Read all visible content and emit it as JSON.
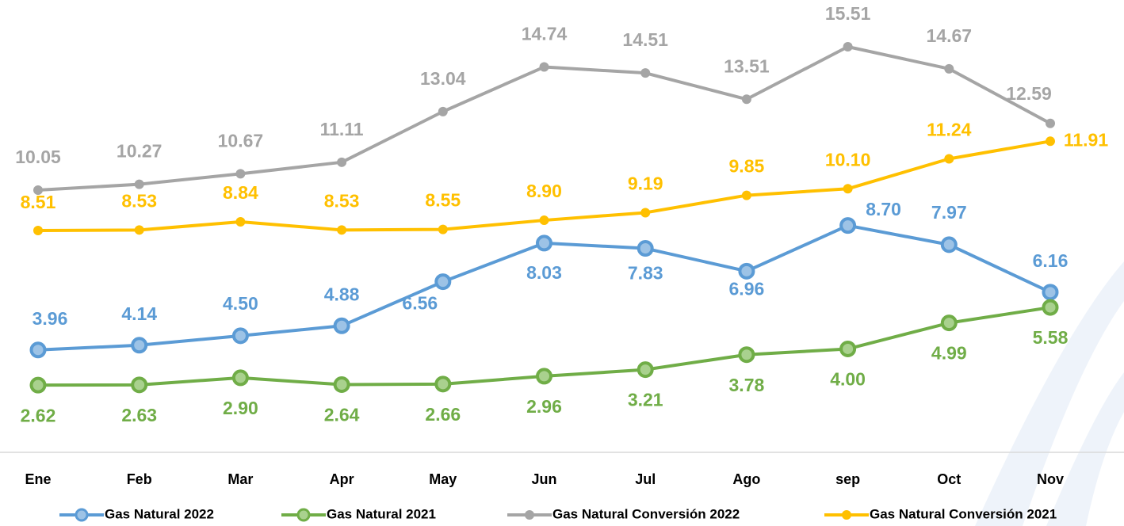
{
  "chart_data": {
    "type": "line",
    "categories": [
      "Ene",
      "Feb",
      "Mar",
      "Apr",
      "May",
      "Jun",
      "Jul",
      "Ago",
      "sep",
      "Oct",
      "Nov"
    ],
    "ylim": [
      0,
      17.2
    ],
    "series": [
      {
        "name": "Gas Natural 2022",
        "color": "#5b9bd5",
        "values": [
          3.96,
          4.14,
          4.5,
          4.88,
          6.56,
          8.03,
          7.83,
          6.96,
          8.7,
          7.97,
          6.16
        ],
        "value_labels": [
          "3.96",
          "4.14",
          "4.50",
          "4.88",
          "6.56",
          "8.03",
          "7.83",
          "6.96",
          "8.70",
          "7.97",
          "6.16"
        ]
      },
      {
        "name": "Gas Natural 2021",
        "color": "#70ad47",
        "values": [
          2.62,
          2.63,
          2.9,
          2.64,
          2.66,
          2.96,
          3.21,
          3.78,
          4.0,
          4.99,
          5.58
        ],
        "value_labels": [
          "2.62",
          "2.63",
          "2.90",
          "2.64",
          "2.66",
          "2.96",
          "3.21",
          "3.78",
          "4.00",
          "4.99",
          "5.58"
        ]
      },
      {
        "name": "Gas Natural Conversión 2022",
        "color": "#a5a5a5",
        "values": [
          10.05,
          10.27,
          10.67,
          11.11,
          13.04,
          14.74,
          14.51,
          13.51,
          15.51,
          14.67,
          12.59
        ],
        "value_labels": [
          "10.05",
          "10.27",
          "10.67",
          "11.11",
          "13.04",
          "14.74",
          "14.51",
          "13.51",
          "15.51",
          "14.67",
          "12.59"
        ]
      },
      {
        "name": "Gas Natural Conversión 2021",
        "color": "#ffc000",
        "values": [
          8.51,
          8.53,
          8.84,
          8.53,
          8.55,
          8.9,
          9.19,
          9.85,
          10.1,
          11.24,
          11.91
        ],
        "value_labels": [
          "8.51",
          "8.53",
          "8.84",
          "8.53",
          "8.55",
          "8.90",
          "9.19",
          "9.85",
          "10.10",
          "11.24",
          "11.91"
        ]
      }
    ]
  }
}
